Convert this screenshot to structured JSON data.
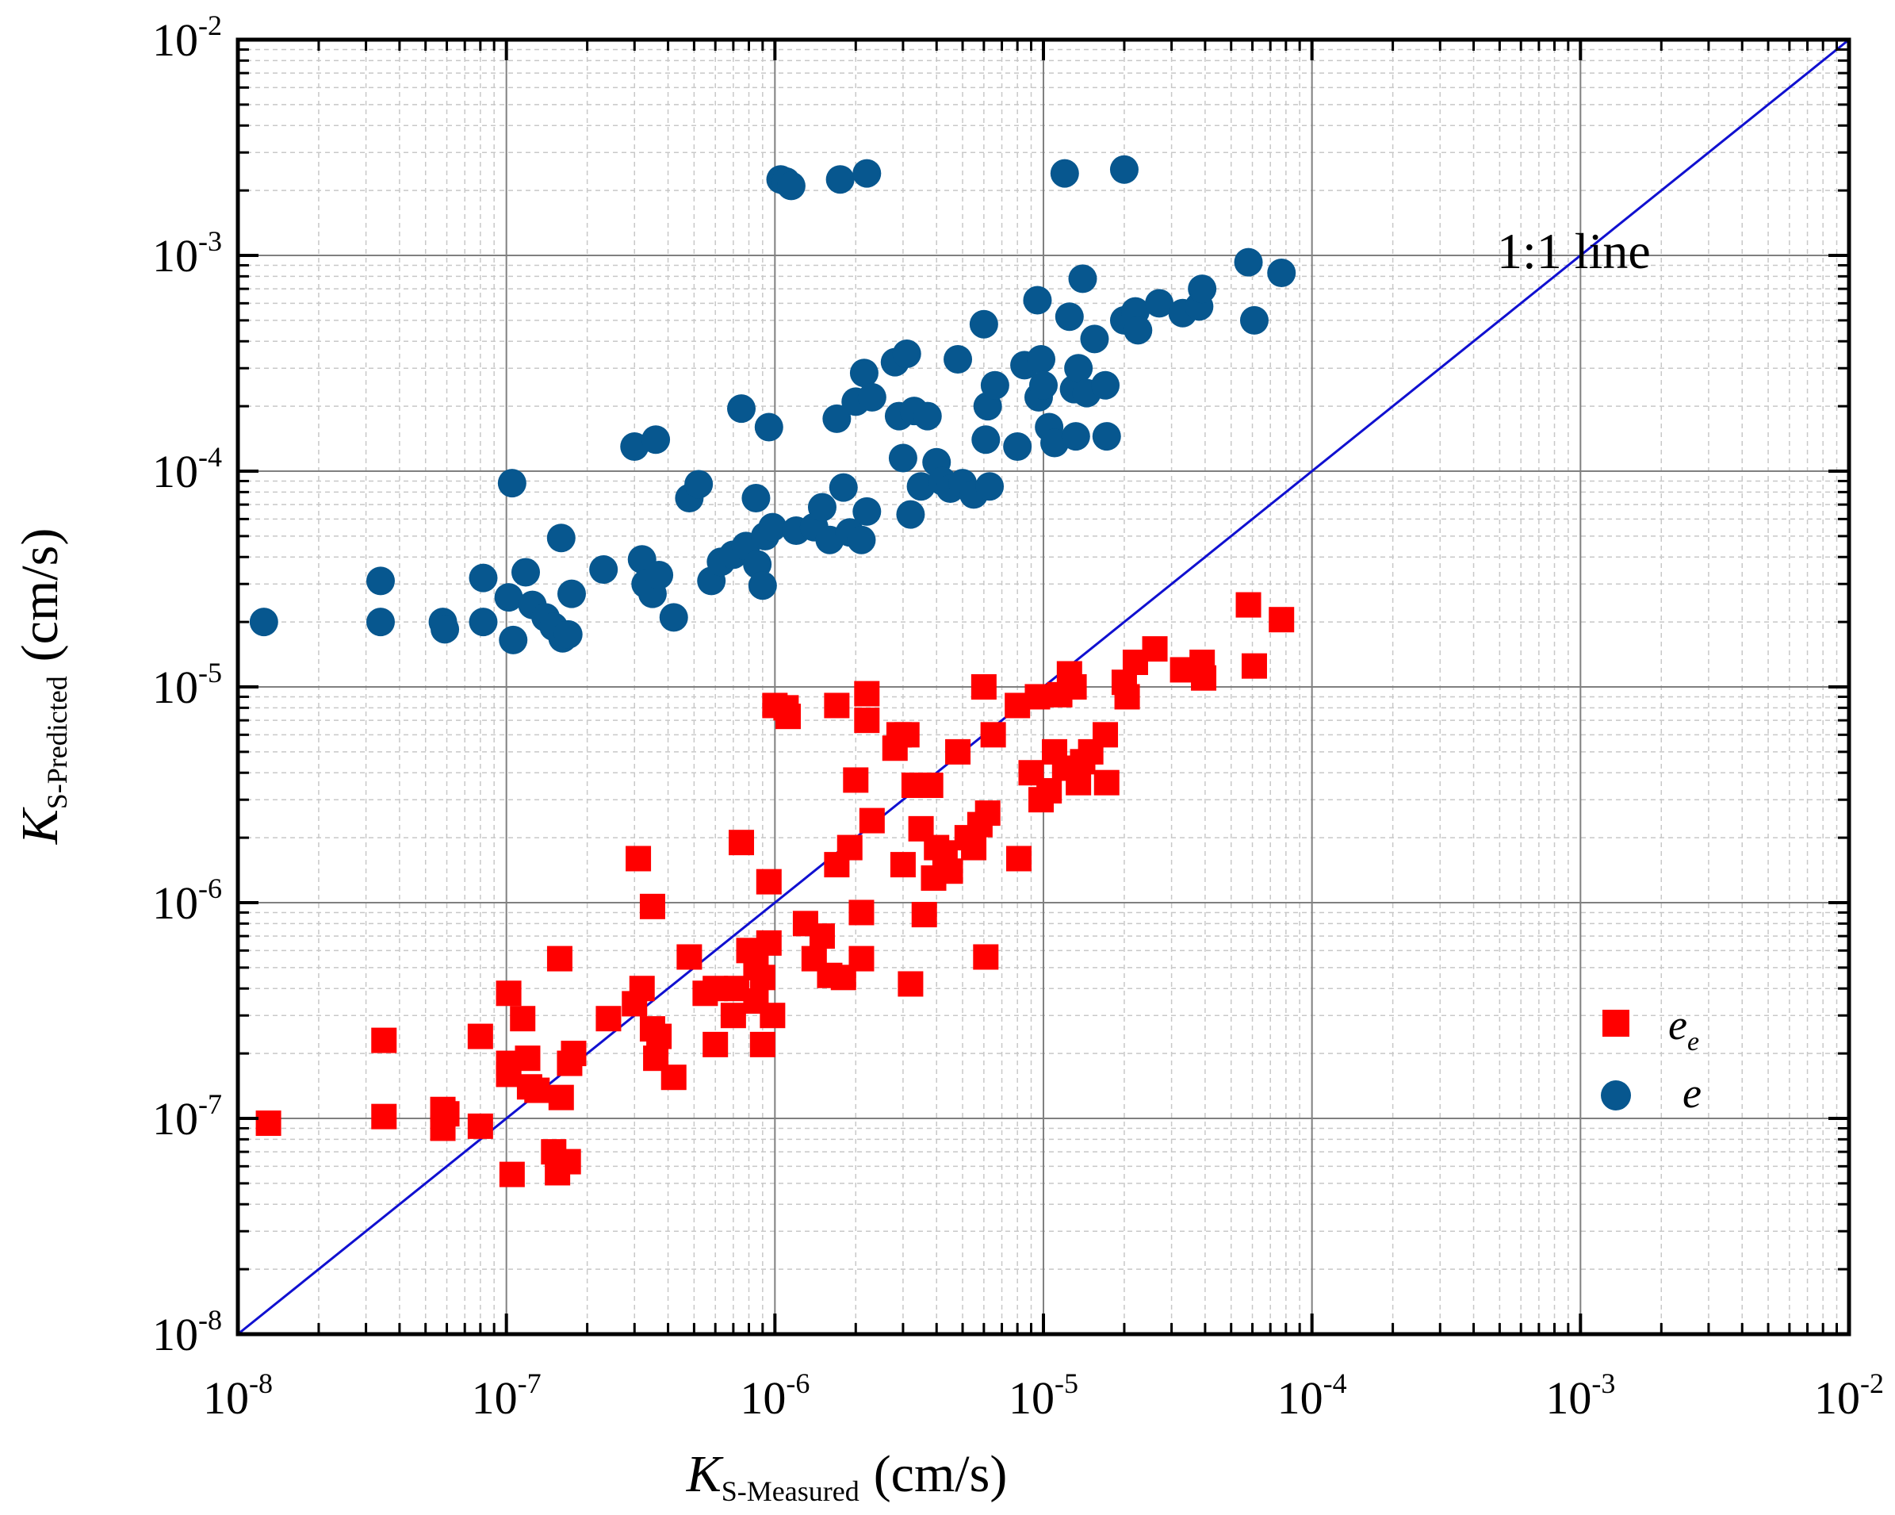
{
  "chart_data": {
    "type": "scatter",
    "xscale": "log",
    "yscale": "log",
    "xlim": [
      1e-08,
      0.01
    ],
    "ylim": [
      1e-08,
      0.01
    ],
    "grid": true,
    "legend_position": "bottom-right",
    "xlabel": {
      "main": "K",
      "sub": "S-Measured",
      "units": "(cm/s)"
    },
    "ylabel": {
      "main": "K",
      "sub": "S-Predicted",
      "units": "(cm/s)"
    },
    "x_ticks": [
      {
        "value": 1e-08,
        "base": "10",
        "exp": "-8"
      },
      {
        "value": 1e-07,
        "base": "10",
        "exp": "-7"
      },
      {
        "value": 1e-06,
        "base": "10",
        "exp": "-6"
      },
      {
        "value": 1e-05,
        "base": "10",
        "exp": "-5"
      },
      {
        "value": 0.0001,
        "base": "10",
        "exp": "-4"
      },
      {
        "value": 0.001,
        "base": "10",
        "exp": "-3"
      },
      {
        "value": 0.01,
        "base": "10",
        "exp": "-2"
      }
    ],
    "y_ticks": [
      {
        "value": 1e-08,
        "base": "10",
        "exp": "-8"
      },
      {
        "value": 1e-07,
        "base": "10",
        "exp": "-7"
      },
      {
        "value": 1e-06,
        "base": "10",
        "exp": "-6"
      },
      {
        "value": 1e-05,
        "base": "10",
        "exp": "-5"
      },
      {
        "value": 0.0001,
        "base": "10",
        "exp": "-4"
      },
      {
        "value": 0.001,
        "base": "10",
        "exp": "-3"
      },
      {
        "value": 0.01,
        "base": "10",
        "exp": "-2"
      }
    ],
    "reference_line": {
      "label": "1:1 line",
      "from": [
        1e-08,
        1e-08
      ],
      "to": [
        0.01,
        0.01
      ],
      "color": "#1010d0"
    },
    "series": [
      {
        "name": "e_e",
        "label_main": "e",
        "label_sub": "e",
        "marker": "square",
        "color": "#ff0000",
        "points": [
          [
            1.3e-08,
            9.5e-08
          ],
          [
            3.5e-08,
            2.3e-07
          ],
          [
            3.5e-08,
            1.02e-07
          ],
          [
            5.8e-08,
            1.1e-07
          ],
          [
            5.8e-08,
            9e-08
          ],
          [
            6e-08,
            1.05e-07
          ],
          [
            8e-08,
            2.4e-07
          ],
          [
            8e-08,
            9.2e-08
          ],
          [
            1.02e-07,
            3.8e-07
          ],
          [
            1.02e-07,
            1.8e-07
          ],
          [
            1.02e-07,
            1.6e-07
          ],
          [
            1.05e-07,
            5.5e-08
          ],
          [
            1.15e-07,
            2.9e-07
          ],
          [
            1.2e-07,
            1.9e-07
          ],
          [
            1.22e-07,
            1.4e-07
          ],
          [
            1.3e-07,
            1.35e-07
          ],
          [
            1.5e-07,
            7e-08
          ],
          [
            1.55e-07,
            5.6e-08
          ],
          [
            1.58e-07,
            5.5e-07
          ],
          [
            1.6e-07,
            1.25e-07
          ],
          [
            1.7e-07,
            6.3e-08
          ],
          [
            1.72e-07,
            1.8e-07
          ],
          [
            1.78e-07,
            2e-07
          ],
          [
            2.4e-07,
            2.9e-07
          ],
          [
            3e-07,
            3.4e-07
          ],
          [
            3.1e-07,
            1.6e-06
          ],
          [
            3.2e-07,
            4e-07
          ],
          [
            3.5e-07,
            9.6e-07
          ],
          [
            3.5e-07,
            2.6e-07
          ],
          [
            3.6e-07,
            1.9e-07
          ],
          [
            3.7e-07,
            2.4e-07
          ],
          [
            4.2e-07,
            1.55e-07
          ],
          [
            4.8e-07,
            5.6e-07
          ],
          [
            5.5e-07,
            3.8e-07
          ],
          [
            6e-07,
            4e-07
          ],
          [
            6e-07,
            2.2e-07
          ],
          [
            7e-07,
            3e-07
          ],
          [
            7.2e-07,
            4e-07
          ],
          [
            7.5e-07,
            1.9e-06
          ],
          [
            8e-07,
            6e-07
          ],
          [
            8.5e-07,
            5e-07
          ],
          [
            8.5e-07,
            3.5e-07
          ],
          [
            9e-07,
            4.5e-07
          ],
          [
            9e-07,
            2.2e-07
          ],
          [
            9.5e-07,
            6.5e-07
          ],
          [
            9.5e-07,
            1.25e-06
          ],
          [
            9.8e-07,
            3e-07
          ],
          [
            1e-06,
            8.2e-06
          ],
          [
            1.1e-06,
            8e-06
          ],
          [
            1.12e-06,
            7.3e-06
          ],
          [
            1.3e-06,
            8e-07
          ],
          [
            1.4e-06,
            5.5e-07
          ],
          [
            1.5e-06,
            7e-07
          ],
          [
            1.6e-06,
            4.6e-07
          ],
          [
            1.7e-06,
            8.2e-06
          ],
          [
            1.7e-06,
            1.5e-06
          ],
          [
            1.8e-06,
            4.5e-07
          ],
          [
            1.9e-06,
            1.8e-06
          ],
          [
            2e-06,
            3.7e-06
          ],
          [
            2.1e-06,
            9e-07
          ],
          [
            2.1e-06,
            5.5e-07
          ],
          [
            2.2e-06,
            9.3e-06
          ],
          [
            2.2e-06,
            7e-06
          ],
          [
            2.3e-06,
            2.4e-06
          ],
          [
            2.8e-06,
            5.2e-06
          ],
          [
            2.9e-06,
            6e-06
          ],
          [
            3e-06,
            1.5e-06
          ],
          [
            3.1e-06,
            6e-06
          ],
          [
            3.2e-06,
            4.2e-07
          ],
          [
            3.3e-06,
            3.5e-06
          ],
          [
            3.5e-06,
            2.2e-06
          ],
          [
            3.6e-06,
            8.8e-07
          ],
          [
            3.8e-06,
            3.5e-06
          ],
          [
            3.9e-06,
            1.3e-06
          ],
          [
            4e-06,
            1.8e-06
          ],
          [
            4.3e-06,
            1.7e-06
          ],
          [
            4.5e-06,
            1.4e-06
          ],
          [
            4.8e-06,
            5e-06
          ],
          [
            5.2e-06,
            2e-06
          ],
          [
            5.5e-06,
            1.8e-06
          ],
          [
            5.8e-06,
            2.3e-06
          ],
          [
            6e-06,
            1e-05
          ],
          [
            6.1e-06,
            5.6e-07
          ],
          [
            6.2e-06,
            2.6e-06
          ],
          [
            6.5e-06,
            6e-06
          ],
          [
            8e-06,
            8.2e-06
          ],
          [
            8.1e-06,
            1.6e-06
          ],
          [
            9e-06,
            4e-06
          ],
          [
            9.5e-06,
            9e-06
          ],
          [
            9.8e-06,
            3e-06
          ],
          [
            1.05e-05,
            3.3e-06
          ],
          [
            1.1e-05,
            5e-06
          ],
          [
            1.15e-05,
            9.2e-06
          ],
          [
            1.2e-05,
            4.2e-06
          ],
          [
            1.25e-05,
            1.15e-05
          ],
          [
            1.3e-05,
            1e-05
          ],
          [
            1.35e-05,
            3.6e-06
          ],
          [
            1.4e-05,
            4.5e-06
          ],
          [
            1.5e-05,
            5e-06
          ],
          [
            1.7e-05,
            6e-06
          ],
          [
            1.72e-05,
            3.6e-06
          ],
          [
            2e-05,
            1.05e-05
          ],
          [
            2.05e-05,
            9e-06
          ],
          [
            2.2e-05,
            1.3e-05
          ],
          [
            2.6e-05,
            1.5e-05
          ],
          [
            3.3e-05,
            1.2e-05
          ],
          [
            3.9e-05,
            1.3e-05
          ],
          [
            3.95e-05,
            1.1e-05
          ],
          [
            5.8e-05,
            2.4e-05
          ],
          [
            6.1e-05,
            1.25e-05
          ],
          [
            7.7e-05,
            2.05e-05
          ]
        ]
      },
      {
        "name": "e",
        "label_main": "e",
        "label_sub": "",
        "marker": "circle",
        "color": "#07578f",
        "points": [
          [
            1.25e-08,
            2e-05
          ],
          [
            3.4e-08,
            3.1e-05
          ],
          [
            3.4e-08,
            2e-05
          ],
          [
            5.8e-08,
            2e-05
          ],
          [
            5.9e-08,
            1.85e-05
          ],
          [
            8.2e-08,
            3.2e-05
          ],
          [
            8.2e-08,
            2e-05
          ],
          [
            1.02e-07,
            2.6e-05
          ],
          [
            1.05e-07,
            8.8e-05
          ],
          [
            1.06e-07,
            1.65e-05
          ],
          [
            1.18e-07,
            3.4e-05
          ],
          [
            1.25e-07,
            2.4e-05
          ],
          [
            1.4e-07,
            2.1e-05
          ],
          [
            1.5e-07,
            1.9e-05
          ],
          [
            1.6e-07,
            4.9e-05
          ],
          [
            1.62e-07,
            1.68e-05
          ],
          [
            1.7e-07,
            1.75e-05
          ],
          [
            1.75e-07,
            2.7e-05
          ],
          [
            2.3e-07,
            3.5e-05
          ],
          [
            3e-07,
            0.00013
          ],
          [
            3.2e-07,
            3.9e-05
          ],
          [
            3.3e-07,
            3e-05
          ],
          [
            3.5e-07,
            2.7e-05
          ],
          [
            3.6e-07,
            0.00014
          ],
          [
            3.7e-07,
            3.3e-05
          ],
          [
            4.2e-07,
            2.1e-05
          ],
          [
            4.8e-07,
            7.5e-05
          ],
          [
            5.2e-07,
            8.7e-05
          ],
          [
            5.8e-07,
            3.1e-05
          ],
          [
            6.3e-07,
            3.8e-05
          ],
          [
            7e-07,
            4.1e-05
          ],
          [
            7.5e-07,
            0.000195
          ],
          [
            7.8e-07,
            4.5e-05
          ],
          [
            8.5e-07,
            7.5e-05
          ],
          [
            8.6e-07,
            3.7e-05
          ],
          [
            9e-07,
            2.95e-05
          ],
          [
            9.2e-07,
            5e-05
          ],
          [
            9.5e-07,
            0.00016
          ],
          [
            9.8e-07,
            5.5e-05
          ],
          [
            1.05e-06,
            0.00225
          ],
          [
            1.1e-06,
            0.0022
          ],
          [
            1.15e-06,
            0.0021
          ],
          [
            1.2e-06,
            5.3e-05
          ],
          [
            1.4e-06,
            5.5e-05
          ],
          [
            1.5e-06,
            6.8e-05
          ],
          [
            1.6e-06,
            4.8e-05
          ],
          [
            1.7e-06,
            0.000175
          ],
          [
            1.75e-06,
            0.00225
          ],
          [
            1.8e-06,
            8.4e-05
          ],
          [
            1.9e-06,
            5.2e-05
          ],
          [
            2e-06,
            0.00021
          ],
          [
            2.1e-06,
            4.8e-05
          ],
          [
            2.15e-06,
            0.000285
          ],
          [
            2.2e-06,
            0.0024
          ],
          [
            2.2e-06,
            6.5e-05
          ],
          [
            2.3e-06,
            0.00022
          ],
          [
            2.8e-06,
            0.00032
          ],
          [
            2.9e-06,
            0.00018
          ],
          [
            3e-06,
            0.000115
          ],
          [
            3.1e-06,
            0.00035
          ],
          [
            3.2e-06,
            6.3e-05
          ],
          [
            3.3e-06,
            0.00019
          ],
          [
            3.5e-06,
            8.5e-05
          ],
          [
            3.7e-06,
            0.00018
          ],
          [
            4e-06,
            0.00011
          ],
          [
            4.2e-06,
            9e-05
          ],
          [
            4.5e-06,
            8.3e-05
          ],
          [
            4.8e-06,
            0.00033
          ],
          [
            5e-06,
            8.8e-05
          ],
          [
            5.5e-06,
            7.8e-05
          ],
          [
            6e-06,
            0.00048
          ],
          [
            6.1e-06,
            0.00014
          ],
          [
            6.2e-06,
            0.0002
          ],
          [
            6.3e-06,
            8.5e-05
          ],
          [
            6.6e-06,
            0.00025
          ],
          [
            8e-06,
            0.00013
          ],
          [
            8.5e-06,
            0.00031
          ],
          [
            9.5e-06,
            0.00062
          ],
          [
            9.6e-06,
            0.00022
          ],
          [
            9.8e-06,
            0.00033
          ],
          [
            1e-05,
            0.00025
          ],
          [
            1.05e-05,
            0.00016
          ],
          [
            1.1e-05,
            0.000135
          ],
          [
            1.2e-05,
            0.0024
          ],
          [
            1.25e-05,
            0.00052
          ],
          [
            1.3e-05,
            0.00024
          ],
          [
            1.32e-05,
            0.000145
          ],
          [
            1.35e-05,
            0.0003
          ],
          [
            1.4e-05,
            0.00078
          ],
          [
            1.45e-05,
            0.00023
          ],
          [
            1.55e-05,
            0.00041
          ],
          [
            1.7e-05,
            0.00025
          ],
          [
            1.72e-05,
            0.000145
          ],
          [
            2e-05,
            0.0025
          ],
          [
            2e-05,
            0.0005
          ],
          [
            2.2e-05,
            0.00055
          ],
          [
            2.25e-05,
            0.00045
          ],
          [
            2.7e-05,
            0.0006
          ],
          [
            3.3e-05,
            0.00054
          ],
          [
            3.8e-05,
            0.00058
          ],
          [
            3.9e-05,
            0.0007
          ],
          [
            5.8e-05,
            0.00093
          ],
          [
            6.1e-05,
            0.0005
          ],
          [
            7.7e-05,
            0.00083
          ]
        ]
      }
    ]
  }
}
